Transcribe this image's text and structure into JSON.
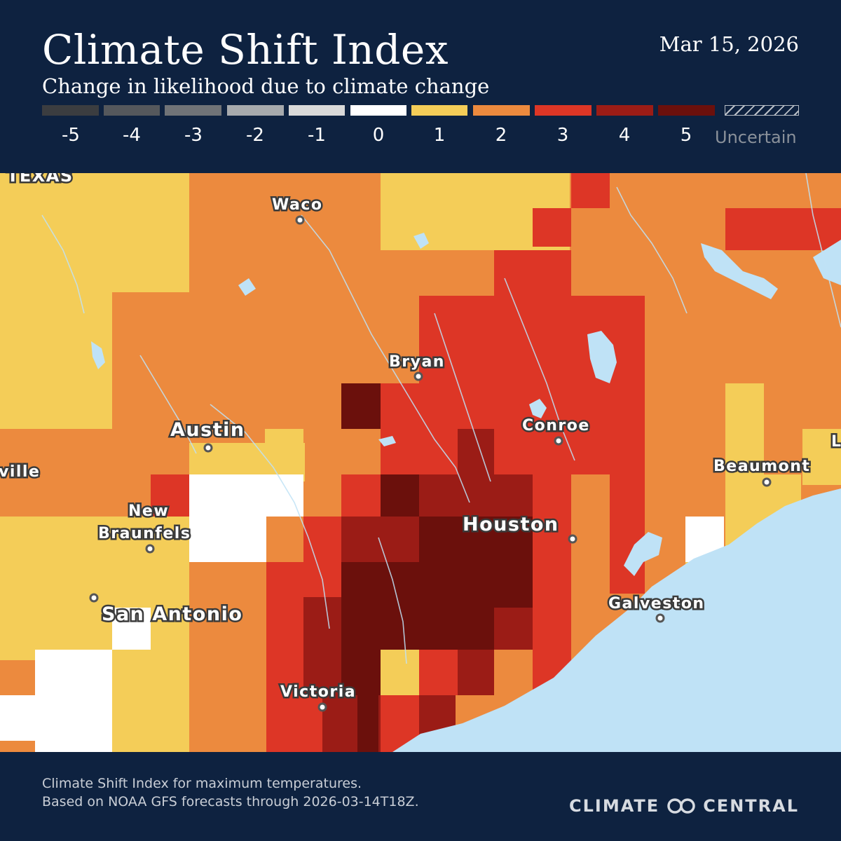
{
  "header": {
    "title": "Climate Shift Index",
    "subtitle": "Change in likelihood due to climate change",
    "date": "Mar 15, 2026"
  },
  "legend": {
    "items": [
      {
        "label": "-5",
        "color": "#3b3d40"
      },
      {
        "label": "-4",
        "color": "#55585c"
      },
      {
        "label": "-3",
        "color": "#707377"
      },
      {
        "label": "-2",
        "color": "#a7aaad"
      },
      {
        "label": "-1",
        "color": "#d9d9d9"
      },
      {
        "label": "0",
        "color": "#ffffff"
      },
      {
        "label": "1",
        "color": "#f4cd58"
      },
      {
        "label": "2",
        "color": "#ec8a3e"
      },
      {
        "label": "3",
        "color": "#dd3626"
      },
      {
        "label": "4",
        "color": "#9b1c16"
      },
      {
        "label": "5",
        "color": "#6b100c"
      }
    ],
    "uncertain_label": "Uncertain"
  },
  "map": {
    "region_label": "TEXAS",
    "water_color": "#bfe2f6",
    "cities": [
      {
        "name": "Waco"
      },
      {
        "name": "Bryan"
      },
      {
        "name": "Austin"
      },
      {
        "name": "Conroe"
      },
      {
        "name": "ville"
      },
      {
        "name": "New"
      },
      {
        "name": "Braunfels"
      },
      {
        "name": "Houston"
      },
      {
        "name": "Beaumont"
      },
      {
        "name": "San Antonio"
      },
      {
        "name": "Galveston"
      },
      {
        "name": "Victoria"
      },
      {
        "name": "L"
      }
    ]
  },
  "footer": {
    "note_line1": "Climate Shift Index for maximum temperatures.",
    "note_line2": "Based on NOAA GFS forecasts through 2026-03-14T18Z.",
    "brand": "CLIMATE CENTRAL"
  }
}
